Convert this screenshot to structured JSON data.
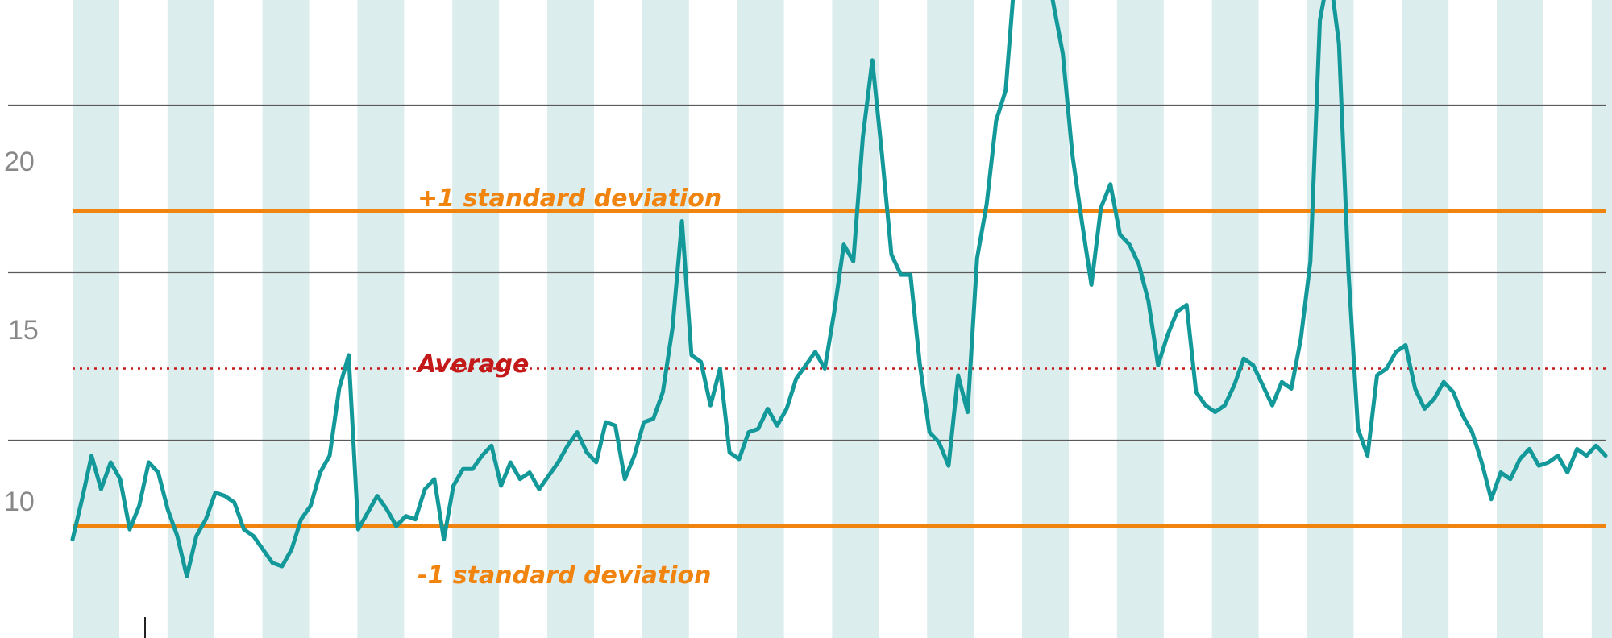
{
  "chart_data": {
    "type": "line",
    "title": "",
    "xlabel": "",
    "ylabel": "",
    "ylim": [
      6.0,
      26.0
    ],
    "y_ticks": [
      10,
      15,
      20
    ],
    "y_tick_labels": [
      "10",
      "15",
      "20"
    ],
    "grid": true,
    "background_bands": 17,
    "colors": {
      "series": "#139999",
      "band": "#dcedee",
      "stdev": "#f0840f",
      "average": "#c41919",
      "grid": "#5a5a5a"
    },
    "reference_lines": [
      {
        "label": "+1 standard deviation",
        "value": 17.8,
        "style": "solid"
      },
      {
        "label": "Average",
        "value": 13.1,
        "style": "dotted"
      },
      {
        "label": "-1 standard deviation",
        "value": 8.4,
        "style": "solid"
      }
    ],
    "series": [
      {
        "values": [
          8.0,
          9.2,
          10.5,
          9.5,
          10.3,
          9.8,
          8.3,
          9.0,
          10.3,
          10.0,
          8.9,
          8.1,
          6.9,
          8.1,
          8.6,
          9.4,
          9.3,
          9.1,
          8.3,
          8.1,
          7.7,
          7.3,
          7.2,
          7.7,
          8.6,
          9.0,
          10.0,
          10.5,
          12.5,
          13.5,
          8.3,
          8.8,
          9.3,
          8.9,
          8.4,
          8.7,
          8.6,
          9.5,
          9.8,
          8.0,
          9.6,
          10.1,
          10.1,
          10.5,
          10.8,
          9.6,
          10.3,
          9.8,
          10.0,
          9.5,
          9.9,
          10.3,
          10.8,
          11.2,
          10.6,
          10.3,
          11.5,
          11.4,
          9.8,
          10.5,
          11.5,
          11.6,
          12.4,
          14.3,
          17.5,
          13.5,
          13.3,
          12.0,
          13.1,
          10.6,
          10.4,
          11.2,
          11.3,
          11.9,
          11.4,
          11.9,
          12.8,
          13.2,
          13.6,
          13.1,
          14.8,
          16.8,
          16.3,
          20.0,
          22.3,
          19.5,
          16.5,
          15.9,
          15.9,
          13.2,
          11.2,
          10.9,
          10.2,
          12.9,
          11.8,
          16.4,
          18.0,
          20.5,
          21.4,
          25.0,
          26.5,
          26.3,
          25.6,
          24.0,
          22.5,
          19.5,
          17.5,
          15.6,
          17.9,
          18.6,
          17.1,
          16.8,
          16.2,
          15.1,
          13.2,
          14.1,
          14.8,
          15.0,
          12.4,
          12.0,
          11.8,
          12.0,
          12.6,
          13.4,
          13.2,
          12.6,
          12.0,
          12.7,
          12.5,
          14.0,
          16.3,
          23.5,
          25.0,
          22.8,
          16.0,
          11.3,
          10.5,
          12.9,
          13.1,
          13.6,
          13.8,
          12.5,
          11.9,
          12.2,
          12.7,
          12.4,
          11.7,
          11.2,
          10.3,
          9.2,
          10.0,
          9.8,
          10.4,
          10.7,
          10.2,
          10.3,
          10.5,
          10.0,
          10.7,
          10.5,
          10.8,
          10.5
        ]
      }
    ],
    "annotations": [
      {
        "text": "+1 standard deviation",
        "color": "#f0840f"
      },
      {
        "text": "Average",
        "color": "#c41919"
      },
      {
        "text": "-1 standard deviation",
        "color": "#f0840f"
      }
    ]
  }
}
